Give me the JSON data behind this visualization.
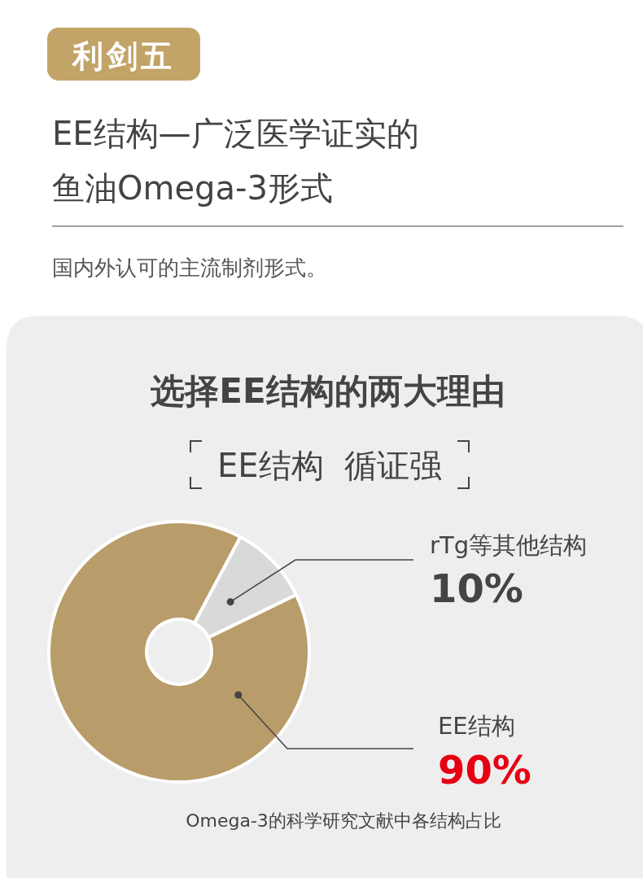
{
  "chart_data": {
    "type": "donut",
    "title": "选择EE结构的两大理由",
    "subtitle": "EE结构  循证强",
    "categories": [
      "rTg等其他结构",
      "EE结构"
    ],
    "values": [
      10,
      90
    ],
    "colors": [
      "#d9d9d9",
      "#b89c6a"
    ],
    "value_labels": [
      "10%",
      "90%"
    ],
    "annotations": [
      "利剑五",
      "EE结构—广泛医学证实的",
      "鱼油Omega-3形式",
      "国内外认可的主流制剂形式。",
      "Omega-3的科学研究文献中各结构占比"
    ]
  }
}
